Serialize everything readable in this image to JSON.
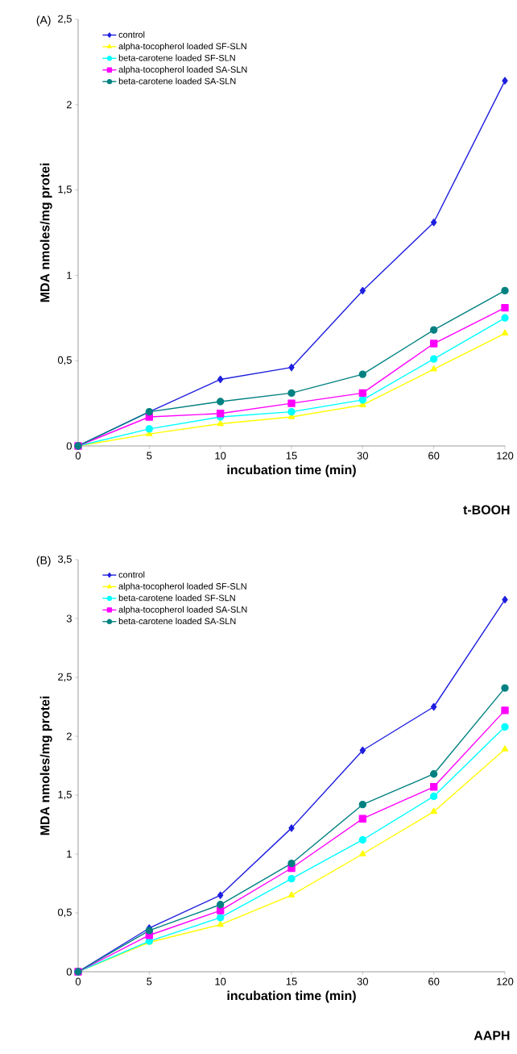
{
  "chart_data": [
    {
      "type": "line",
      "title": "(A)",
      "xlabel": "incubation time (min)",
      "ylabel": "MDA nmoles/mg protei",
      "annotations": [
        "t-BOOH"
      ],
      "categories": [
        "0",
        "5",
        "10",
        "15",
        "30",
        "60",
        "120"
      ],
      "ylim": [
        0,
        2.5
      ],
      "yticks": [
        0,
        {
          "value": 0.5,
          "label": "0,5"
        },
        1,
        {
          "value": 1.5,
          "label": "1,5"
        },
        2,
        {
          "value": 2.5,
          "label": "2,5"
        }
      ],
      "grid": false,
      "legend": "top left",
      "series": [
        {
          "name": "control",
          "color": "#1f1fe0",
          "marker": "diamond",
          "values": [
            0,
            0.2,
            0.39,
            0.46,
            0.91,
            1.31,
            2.14
          ]
        },
        {
          "name": "alpha-tocopherol loaded SF-SLN",
          "color": "#ffff00",
          "marker": "triangle",
          "values": [
            0,
            0.07,
            0.13,
            0.17,
            0.24,
            0.45,
            0.66
          ]
        },
        {
          "name": "beta-carotene loaded SF-SLN",
          "color": "#00ffff",
          "marker": "circle",
          "values": [
            0,
            0.1,
            0.17,
            0.2,
            0.27,
            0.51,
            0.75
          ]
        },
        {
          "name": "alpha-tocopherol loaded SA-SLN",
          "color": "#ff00ff",
          "marker": "square",
          "values": [
            0,
            0.17,
            0.19,
            0.25,
            0.31,
            0.6,
            0.81
          ]
        },
        {
          "name": "beta-carotene loaded SA-SLN",
          "color": "#008080",
          "marker": "circle",
          "values": [
            0,
            0.2,
            0.26,
            0.31,
            0.42,
            0.68,
            0.91
          ]
        }
      ]
    },
    {
      "type": "line",
      "title": "(B)",
      "xlabel": "incubation time (min)",
      "ylabel": "MDA nmoles/mg protei",
      "annotations": [
        "AAPH"
      ],
      "categories": [
        "0",
        "5",
        "10",
        "15",
        "30",
        "60",
        "120"
      ],
      "ylim": [
        0,
        3.5
      ],
      "yticks": [
        0,
        {
          "value": 0.5,
          "label": "0,5"
        },
        1,
        {
          "value": 1.5,
          "label": "1,5"
        },
        2,
        {
          "value": 2.5,
          "label": "2,5"
        },
        3,
        {
          "value": 3.5,
          "label": "3,5"
        }
      ],
      "grid": false,
      "legend": "top left",
      "series": [
        {
          "name": "control",
          "color": "#1f1fe0",
          "marker": "diamond",
          "values": [
            0,
            0.37,
            0.65,
            1.22,
            1.88,
            2.25,
            3.16
          ]
        },
        {
          "name": "alpha-tocopherol loaded SF-SLN",
          "color": "#ffff00",
          "marker": "triangle",
          "values": [
            0,
            0.25,
            0.4,
            0.65,
            1.0,
            1.36,
            1.89
          ]
        },
        {
          "name": "beta-carotene loaded SF-SLN",
          "color": "#00ffff",
          "marker": "circle",
          "values": [
            0,
            0.26,
            0.46,
            0.79,
            1.12,
            1.49,
            2.08
          ]
        },
        {
          "name": "alpha-tocopherol loaded SA-SLN",
          "color": "#ff00ff",
          "marker": "square",
          "values": [
            0,
            0.31,
            0.52,
            0.88,
            1.3,
            1.57,
            2.22
          ]
        },
        {
          "name": "beta-carotene loaded SA-SLN",
          "color": "#008080",
          "marker": "circle",
          "values": [
            0,
            0.35,
            0.57,
            0.92,
            1.42,
            1.68,
            2.41
          ]
        }
      ]
    }
  ]
}
